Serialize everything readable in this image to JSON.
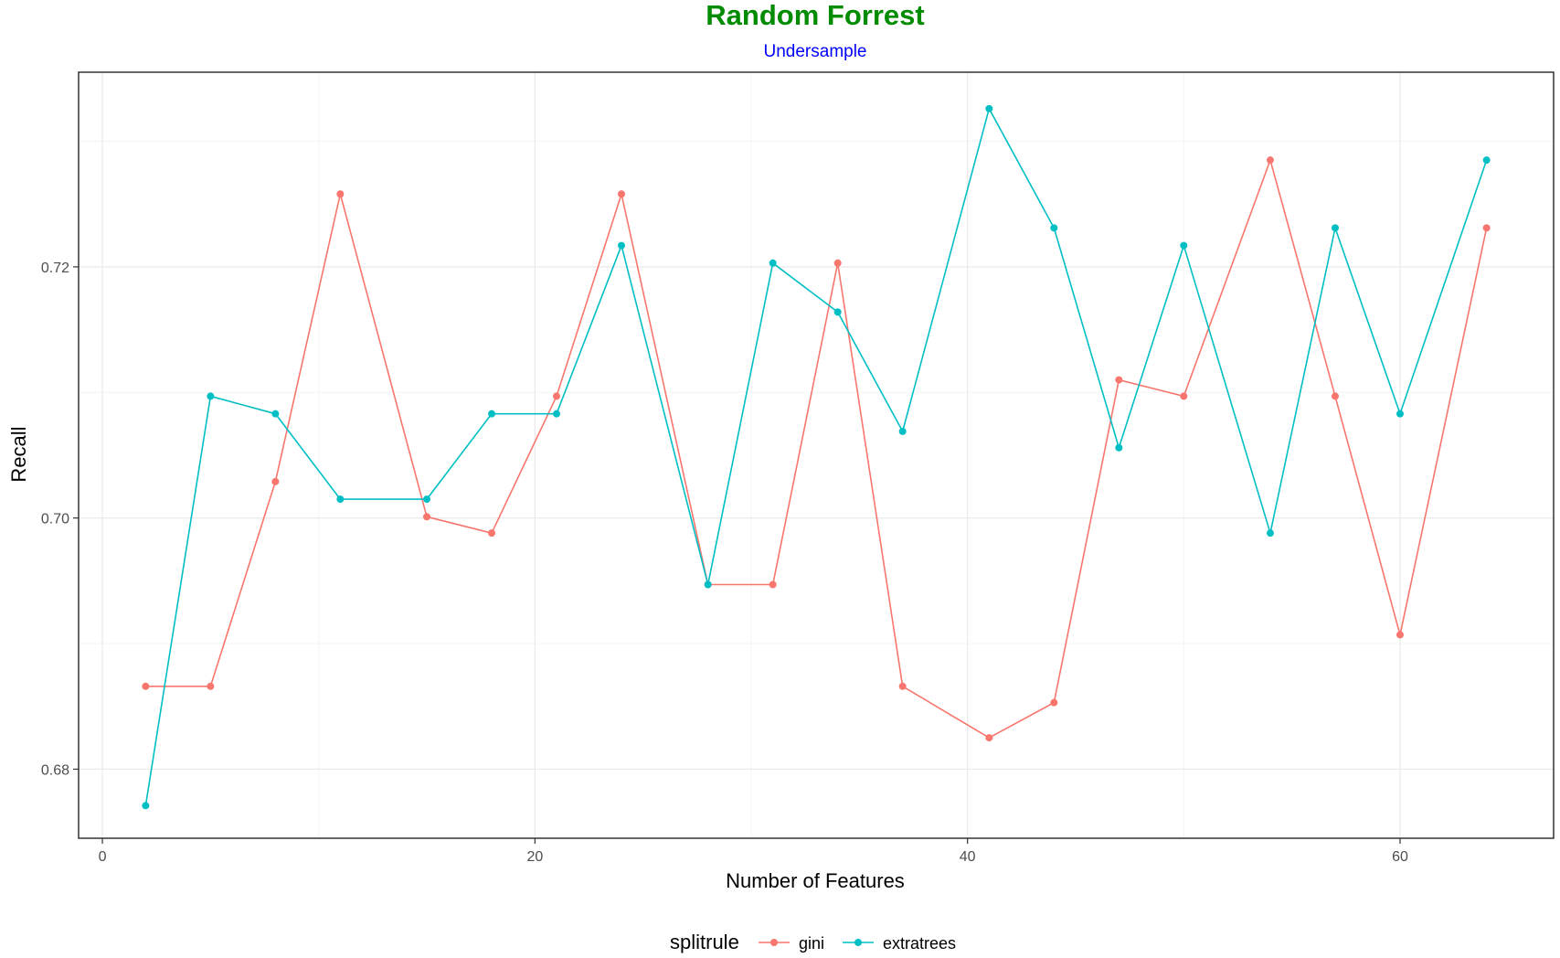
{
  "colors": {
    "title": "#008B00",
    "subtitle": "#0000FF",
    "panel_border": "#333333",
    "grid_major": "#EBEBEB",
    "grid_minor": "#F4F4F4",
    "gini": "#F8766D",
    "extratrees": "#00BFC4"
  },
  "chart_data": {
    "type": "line",
    "title": "Random Forrest",
    "subtitle": "Undersample",
    "xlabel": "Number of Features",
    "ylabel": "Recall",
    "xlim": [
      -1.1,
      67.1
    ],
    "ylim": [
      0.6745,
      0.7355
    ],
    "x_ticks": [
      0,
      20,
      40,
      60
    ],
    "x_tick_labels": [
      "0",
      "20",
      "40",
      "60"
    ],
    "x_minor_ticks": [
      10,
      30,
      50
    ],
    "y_ticks": [
      0.68,
      0.7,
      0.72
    ],
    "y_tick_labels": [
      "0.68",
      "0.70",
      "0.72"
    ],
    "y_minor_ticks": [
      0.69,
      0.71,
      0.73
    ],
    "grid": true,
    "legend": {
      "title": "splitrule",
      "position": "bottom"
    },
    "x": [
      2,
      5,
      8,
      11,
      15,
      18,
      21,
      24,
      28,
      31,
      34,
      37,
      41,
      44,
      47,
      50,
      54,
      57,
      60,
      64
    ],
    "series": [
      {
        "name": "gini",
        "color": "#F8766D",
        "values": [
          0.6866,
          0.6866,
          0.7029,
          0.7258,
          0.7001,
          0.6988,
          0.7097,
          0.7258,
          0.6947,
          0.6947,
          0.7203,
          0.6866,
          0.6825,
          0.6853,
          0.711,
          0.7097,
          0.7285,
          0.7097,
          0.6907,
          0.7231
        ]
      },
      {
        "name": "extratrees",
        "color": "#00BFC4",
        "values": [
          0.6771,
          0.7097,
          0.7083,
          0.7015,
          0.7015,
          0.7083,
          0.7083,
          0.7217,
          0.6947,
          0.7203,
          0.7164,
          0.7069,
          0.7326,
          0.7231,
          0.7056,
          0.7217,
          0.6988,
          0.7231,
          0.7083,
          0.7285
        ]
      }
    ]
  }
}
